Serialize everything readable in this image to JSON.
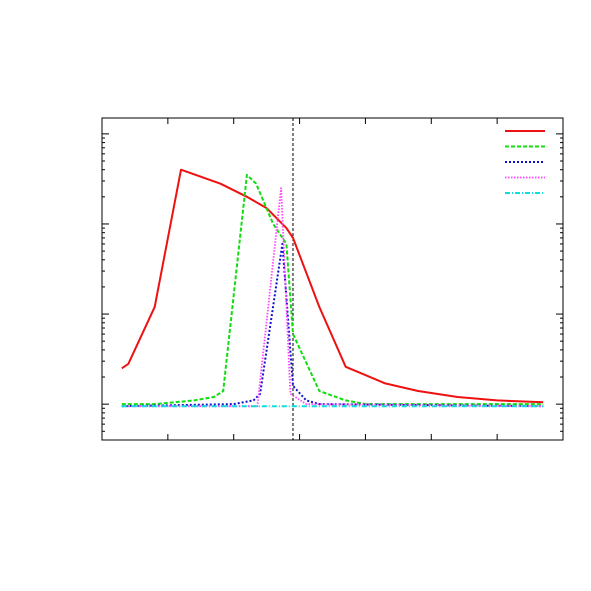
{
  "chart_data": {
    "type": "line",
    "title": "",
    "xlabel": "",
    "ylabel": "",
    "y_scale": "log",
    "xlim": [
      0,
      35
    ],
    "ylim": [
      0.0004,
      1.5
    ],
    "grid": false,
    "legend": "top-right",
    "vertical_marker_x": 14.5,
    "series": [
      {
        "color": "#ee1111",
        "dash": "solid",
        "points": [
          [
            1.5,
            0.0025
          ],
          [
            2,
            0.0028
          ],
          [
            4,
            0.012
          ],
          [
            6,
            0.4
          ],
          [
            9,
            0.28
          ],
          [
            11,
            0.2
          ],
          [
            12.5,
            0.15
          ],
          [
            14,
            0.09
          ],
          [
            14.5,
            0.07
          ],
          [
            16.5,
            0.012
          ],
          [
            18.5,
            0.0026
          ],
          [
            20,
            0.0021
          ],
          [
            21.5,
            0.0017
          ],
          [
            24,
            0.0014
          ],
          [
            27,
            0.0012
          ],
          [
            30,
            0.0011
          ],
          [
            33.5,
            0.00105
          ]
        ]
      },
      {
        "color": "#11dd11",
        "dash": "dashed",
        "points": [
          [
            1.5,
            0.001
          ],
          [
            4,
            0.001
          ],
          [
            7,
            0.0011
          ],
          [
            8.5,
            0.0012
          ],
          [
            9.2,
            0.0014
          ],
          [
            11,
            0.35
          ],
          [
            11.7,
            0.28
          ],
          [
            13,
            0.1
          ],
          [
            14,
            0.06
          ],
          [
            14.5,
            0.006
          ],
          [
            16.5,
            0.0014
          ],
          [
            18.5,
            0.0011
          ],
          [
            20,
            0.001
          ],
          [
            33.5,
            0.001
          ]
        ]
      },
      {
        "color": "#1111cc",
        "dash": "dotted",
        "points": [
          [
            1.5,
            0.00095
          ],
          [
            10,
            0.001
          ],
          [
            11.5,
            0.0011
          ],
          [
            12,
            0.0013
          ],
          [
            13.7,
            0.06
          ],
          [
            14.5,
            0.0016
          ],
          [
            15.5,
            0.0011
          ],
          [
            16.5,
            0.001
          ],
          [
            33.5,
            0.00095
          ]
        ]
      },
      {
        "color": "#ff44ff",
        "dash": "dotted-fine",
        "points": [
          [
            1.5,
            0.00095
          ],
          [
            11.8,
            0.00095
          ],
          [
            13.6,
            0.25
          ],
          [
            14.3,
            0.0013
          ],
          [
            15.5,
            0.001
          ],
          [
            33.5,
            0.00095
          ]
        ]
      },
      {
        "color": "#11dddd",
        "dash": "dashdot",
        "points": [
          [
            1.5,
            0.00095
          ],
          [
            33.5,
            0.00095
          ]
        ]
      }
    ]
  }
}
